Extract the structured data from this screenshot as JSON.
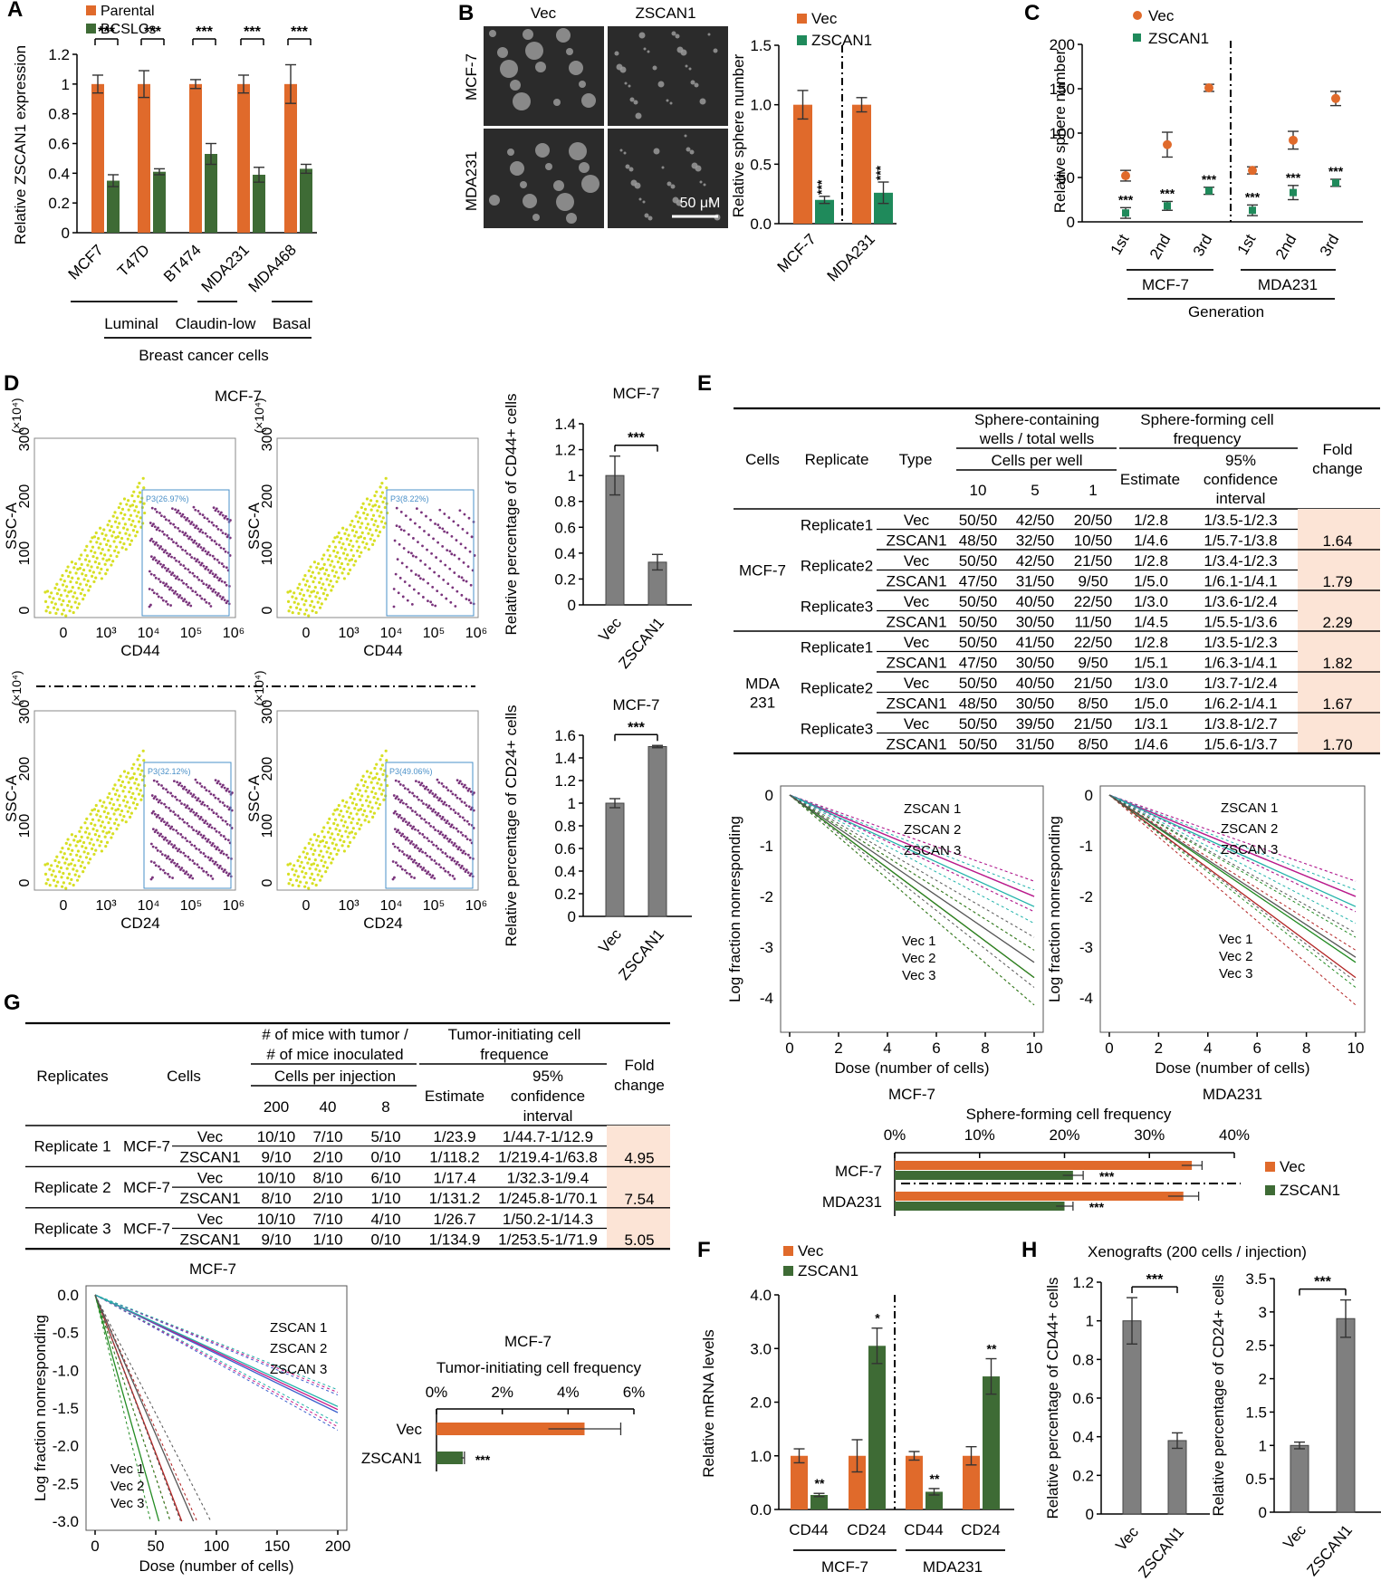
{
  "colors": {
    "orange": "#E06A2B",
    "green": "#3E6B35",
    "teal": "#1F8A5B",
    "gray": "#7F7F7F",
    "peach": "#FCE4D6",
    "yellow": "#D7DF23",
    "purple": "#6B1E6E",
    "gate": "#4A90C8"
  },
  "panel_letters": [
    "A",
    "B",
    "C",
    "D",
    "E",
    "F",
    "G",
    "H"
  ],
  "chart_data": [
    {
      "panel": "A",
      "type": "bar",
      "series": [
        {
          "name": "Parental",
          "values": [
            1,
            1,
            1,
            1,
            1
          ],
          "errors": [
            0.06,
            0.09,
            0.03,
            0.06,
            0.13
          ]
        },
        {
          "name": "BCSLCs",
          "values": [
            0.35,
            0.41,
            0.53,
            0.39,
            0.43
          ],
          "errors": [
            0.04,
            0.02,
            0.07,
            0.05,
            0.03
          ]
        }
      ],
      "categories": [
        "MCF7",
        "T47D",
        "BT474",
        "MDA231",
        "MDA468"
      ],
      "ylabel": "Relative ZSCAN1 expression",
      "ylim": [
        0,
        1.2
      ],
      "yticks": [
        "0",
        "0.2",
        "0.4",
        "0.6",
        "0.8",
        "1",
        "1.2"
      ],
      "significance": [
        "***",
        "***",
        "***",
        "***",
        "***"
      ],
      "groups": [
        "Luminal",
        "Claudin-low",
        "Basal"
      ],
      "xlabel": "Breast cancer cells"
    },
    {
      "panel": "B",
      "type": "bar",
      "image_labels": {
        "columns": [
          "Vec",
          "ZSCAN1"
        ],
        "rows": [
          "MCF-7",
          "MDA231"
        ],
        "scale": "50 μM"
      },
      "series": [
        {
          "name": "Vec",
          "values": [
            1.0,
            1.0
          ],
          "errors": [
            0.12,
            0.06
          ]
        },
        {
          "name": "ZSCAN1",
          "values": [
            0.2,
            0.26
          ],
          "errors": [
            0.03,
            0.09
          ]
        }
      ],
      "categories": [
        "MCF-7",
        "MDA231"
      ],
      "ylabel": "Relative sphere number",
      "ylim": [
        0,
        1.5
      ],
      "yticks": [
        "0.0",
        "0.5",
        "1.0",
        "1.5"
      ],
      "significance": [
        "***",
        "***"
      ]
    },
    {
      "panel": "C",
      "type": "scatter",
      "series": [
        {
          "name": "Vec",
          "values": [
            52,
            87,
            151,
            58,
            92,
            139
          ],
          "errors": [
            6,
            14,
            4,
            4,
            10,
            8
          ]
        },
        {
          "name": "ZSCAN1",
          "values": [
            10,
            18,
            35,
            13,
            33,
            44
          ],
          "errors": [
            6,
            5,
            4,
            6,
            8,
            4
          ]
        }
      ],
      "categories": [
        "1st",
        "2nd",
        "3rd",
        "1st",
        "2nd",
        "3rd"
      ],
      "groups": [
        "MCF-7",
        "MDA231"
      ],
      "xlabel": "Generation",
      "ylabel": "Relative sphere number",
      "ylim": [
        0,
        200
      ],
      "yticks": [
        "0",
        "50",
        "100",
        "150",
        "200"
      ],
      "significance": [
        "***",
        "***",
        "***",
        "***",
        "***",
        "***"
      ]
    },
    {
      "panel": "D",
      "type": "scatter",
      "title": "MCF-7",
      "plots": [
        {
          "gate": "P3(26.97%)",
          "xlabel": "CD44"
        },
        {
          "gate": "P3(8.22%)",
          "xlabel": "CD44"
        },
        {
          "gate": "P3(32.12%)",
          "xlabel": "CD24"
        },
        {
          "gate": "P3(49.06%)",
          "xlabel": "CD24"
        }
      ],
      "ylabel": "SSC-A",
      "yunit": "(×10⁴)",
      "yticks": [
        "0",
        "100",
        "200",
        "300"
      ],
      "xticks": [
        "0",
        "10³",
        "10⁴",
        "10⁵",
        "10⁶"
      ]
    },
    {
      "panel": "D",
      "type": "bar",
      "title": "MCF-7",
      "categories": [
        "Vec",
        "ZSCAN1"
      ],
      "values": [
        1.0,
        0.33
      ],
      "errors": [
        0.15,
        0.06
      ],
      "ylabel": "Relative percentage of CD44+ cells",
      "ylim": [
        0,
        1.4
      ],
      "yticks": [
        "0",
        "0.2",
        "0.4",
        "0.6",
        "0.8",
        "1",
        "1.2",
        "1.4"
      ],
      "significance": "***"
    },
    {
      "panel": "D",
      "type": "bar",
      "title": "MCF-7",
      "categories": [
        "Vec",
        "ZSCAN1"
      ],
      "values": [
        1.0,
        1.5
      ],
      "errors": [
        0.04,
        0.01
      ],
      "ylabel": "Relative percentage of CD24+ cells",
      "ylim": [
        0,
        1.6
      ],
      "yticks": [
        "0",
        "0.2",
        "0.4",
        "0.6",
        "0.8",
        "1",
        "1.2",
        "1.4",
        "1.6"
      ],
      "significance": "***"
    },
    {
      "panel": "E",
      "type": "table",
      "headers": {
        "cells": "Cells",
        "replicate": "Replicate",
        "type": "Type",
        "sphere_wells": "Sphere-containing wells / total wells",
        "cells_per_well": "Cells per well",
        "dose": [
          "10",
          "5",
          "1"
        ],
        "freq": "Sphere-forming cell frequency",
        "estimate": "Estimate",
        "ci": "95% confidence interval",
        "fold": "Fold change"
      },
      "groups": [
        {
          "cells": "MCF-7",
          "replicates": [
            {
              "name": "Replicate1",
              "rows": [
                [
                  "Vec",
                  "50/50",
                  "42/50",
                  "20/50",
                  "1/2.8",
                  "1/3.5-1/2.3"
                ],
                [
                  "ZSCAN1",
                  "48/50",
                  "32/50",
                  "10/50",
                  "1/4.6",
                  "1/5.7-1/3.8"
                ]
              ],
              "fold": "1.64"
            },
            {
              "name": "Replicate2",
              "rows": [
                [
                  "Vec",
                  "50/50",
                  "42/50",
                  "21/50",
                  "1/2.8",
                  "1/3.4-1/2.3"
                ],
                [
                  "ZSCAN1",
                  "47/50",
                  "31/50",
                  "9/50",
                  "1/5.0",
                  "1/6.1-1/4.1"
                ]
              ],
              "fold": "1.79"
            },
            {
              "name": "Replicate3",
              "rows": [
                [
                  "Vec",
                  "50/50",
                  "40/50",
                  "22/50",
                  "1/3.0",
                  "1/3.6-1/2.4"
                ],
                [
                  "ZSCAN1",
                  "50/50",
                  "30/50",
                  "11/50",
                  "1/4.5",
                  "1/5.5-1/3.6"
                ]
              ],
              "fold": "2.29"
            }
          ]
        },
        {
          "cells": "MDA 231",
          "replicates": [
            {
              "name": "Replicate1",
              "rows": [
                [
                  "Vec",
                  "50/50",
                  "41/50",
                  "22/50",
                  "1/2.8",
                  "1/3.5-1/2.3"
                ],
                [
                  "ZSCAN1",
                  "47/50",
                  "30/50",
                  "9/50",
                  "1/5.1",
                  "1/6.3-1/4.1"
                ]
              ],
              "fold": "1.82"
            },
            {
              "name": "Replicate2",
              "rows": [
                [
                  "Vec",
                  "50/50",
                  "40/50",
                  "21/50",
                  "1/3.0",
                  "1/3.7-1/2.4"
                ],
                [
                  "ZSCAN1",
                  "48/50",
                  "30/50",
                  "8/50",
                  "1/5.0",
                  "1/6.2-1/4.1"
                ]
              ],
              "fold": "1.67"
            },
            {
              "name": "Replicate3",
              "rows": [
                [
                  "Vec",
                  "50/50",
                  "39/50",
                  "21/50",
                  "1/3.1",
                  "1/3.8-1/2.7"
                ],
                [
                  "ZSCAN1",
                  "50/50",
                  "31/50",
                  "8/50",
                  "1/4.6",
                  "1/5.6-1/3.7"
                ]
              ],
              "fold": "1.70"
            }
          ]
        }
      ]
    },
    {
      "panel": "E",
      "type": "line",
      "titles": [
        "MCF-7",
        "MDA231"
      ],
      "xlabel": "Dose (number of cells)",
      "ylabel": "Log fraction nonresponding",
      "xlim": [
        0,
        10
      ],
      "ylim": [
        -4.5,
        0
      ],
      "xticks": [
        "0",
        "2",
        "4",
        "6",
        "8",
        "10"
      ],
      "yticks": [
        "0",
        "-1",
        "-2",
        "-3",
        "-4"
      ],
      "series_labels": [
        "ZSCAN 1",
        "ZSCAN 2",
        "ZSCAN 3",
        "Vec 1",
        "Vec 2",
        "Vec 3"
      ],
      "slopes": [
        [
          -0.2,
          -0.2,
          -0.22,
          -0.36,
          -0.36,
          -0.33
        ],
        [
          -0.2,
          -0.2,
          -0.22,
          -0.36,
          -0.33,
          -0.32
        ]
      ]
    },
    {
      "panel": "E",
      "type": "bar",
      "orientation": "horizontal",
      "title": "Sphere-forming cell frequency",
      "categories": [
        "MCF-7",
        "MDA231"
      ],
      "series": [
        {
          "name": "Vec",
          "values": [
            35,
            34
          ],
          "errors": [
            1.2,
            1.8
          ]
        },
        {
          "name": "ZSCAN1",
          "values": [
            21,
            20
          ],
          "errors": [
            1.2,
            1
          ]
        }
      ],
      "xlim": [
        0,
        40
      ],
      "xticks": [
        "0%",
        "10%",
        "20%",
        "30%",
        "40%"
      ],
      "significance": [
        "***",
        "***"
      ]
    },
    {
      "panel": "F",
      "type": "bar",
      "series": [
        {
          "name": "Vec",
          "values": [
            1.0,
            1.0,
            1.0,
            1.0
          ],
          "errors": [
            0.13,
            0.3,
            0.08,
            0.17
          ]
        },
        {
          "name": "ZSCAN1",
          "values": [
            0.27,
            3.05,
            0.33,
            2.48
          ],
          "errors": [
            0.03,
            0.33,
            0.06,
            0.33
          ]
        }
      ],
      "categories": [
        "CD44",
        "CD24",
        "CD44",
        "CD24"
      ],
      "groups": [
        "MCF-7",
        "MDA231"
      ],
      "ylabel": "Relative mRNA levels",
      "ylim": [
        0,
        4
      ],
      "yticks": [
        "0.0",
        "1.0",
        "2.0",
        "3.0",
        "4.0"
      ],
      "significance": [
        "**",
        "*",
        "**",
        "**"
      ]
    },
    {
      "panel": "G",
      "type": "table",
      "headers": {
        "replicates": "Replicates",
        "cells": "Cells",
        "mice": "# of mice with tumor / # of mice inoculated",
        "cells_per_injection": "Cells per injection",
        "dose": [
          "200",
          "40",
          "8"
        ],
        "freq": "Tumor-initiating cell frequence",
        "estimate": "Estimate",
        "ci": "95% confidence interval",
        "fold": "Fold change"
      },
      "replicates": [
        {
          "name": "Replicate 1",
          "cells": "MCF-7",
          "rows": [
            [
              "Vec",
              "10/10",
              "7/10",
              "5/10",
              "1/23.9",
              "1/44.7-1/12.9"
            ],
            [
              "ZSCAN1",
              "9/10",
              "2/10",
              "0/10",
              "1/118.2",
              "1/219.4-1/63.8"
            ]
          ],
          "fold": "4.95"
        },
        {
          "name": "Replicate 2",
          "cells": "MCF-7",
          "rows": [
            [
              "Vec",
              "10/10",
              "8/10",
              "6/10",
              "1/17.4",
              "1/32.3-1/9.4"
            ],
            [
              "ZSCAN1",
              "8/10",
              "2/10",
              "1/10",
              "1/131.2",
              "1/245.8-1/70.1"
            ]
          ],
          "fold": "7.54"
        },
        {
          "name": "Replicate 3",
          "cells": "MCF-7",
          "rows": [
            [
              "Vec",
              "10/10",
              "7/10",
              "4/10",
              "1/26.7",
              "1/50.2-1/14.3"
            ],
            [
              "ZSCAN1",
              "9/10",
              "1/10",
              "0/10",
              "1/134.9",
              "1/253.5-1/71.9"
            ]
          ],
          "fold": "5.05"
        }
      ]
    },
    {
      "panel": "G",
      "type": "line",
      "title": "MCF-7",
      "xlabel": "Dose (number of cells)",
      "ylabel": "Log fraction nonresponding",
      "xlim": [
        0,
        200
      ],
      "ylim": [
        -3.0,
        0
      ],
      "xticks": [
        "0",
        "50",
        "100",
        "150",
        "200"
      ],
      "yticks": [
        "0.0",
        "-0.5",
        "-1.0",
        "-1.5",
        "-2.0",
        "-2.5",
        "-3.0"
      ],
      "series_labels": [
        "ZSCAN 1",
        "ZSCAN 2",
        "ZSCAN 3",
        "Vec 1",
        "Vec 2",
        "Vec 3"
      ],
      "slopes": [
        -0.0078,
        -0.0076,
        -0.0074,
        -0.042,
        -0.057,
        -0.037
      ]
    },
    {
      "panel": "G",
      "type": "bar",
      "orientation": "horizontal",
      "title": "MCF-7",
      "subtitle": "Tumor-initiating cell frequency",
      "categories": [
        "Vec",
        "ZSCAN1"
      ],
      "values": [
        4.5,
        0.8
      ],
      "errors": [
        1.1,
        0.05
      ],
      "xlim": [
        0,
        6
      ],
      "xticks": [
        "0%",
        "2%",
        "4%",
        "6%"
      ],
      "significance": "***"
    },
    {
      "panel": "H",
      "type": "bar",
      "title": "Xenografts (200 cells / injection)",
      "plots": [
        {
          "categories": [
            "Vec",
            "ZSCAN1"
          ],
          "values": [
            1.0,
            0.38
          ],
          "errors": [
            0.12,
            0.04
          ],
          "ylabel": "Relative percentage of CD44+ cells",
          "ylim": [
            0,
            1.2
          ],
          "yticks": [
            "0",
            "0.2",
            "0.4",
            "0.6",
            "0.8",
            "1",
            "1.2"
          ],
          "significance": "***"
        },
        {
          "categories": [
            "Vec",
            "ZSCAN1"
          ],
          "values": [
            1.0,
            2.9
          ],
          "errors": [
            0.05,
            0.28
          ],
          "ylabel": "Relative percentage of CD24+ cells",
          "ylim": [
            0,
            3.5
          ],
          "yticks": [
            "0",
            "0.5",
            "1",
            "1.5",
            "2",
            "2.5",
            "3",
            "3.5"
          ],
          "significance": "***"
        }
      ]
    }
  ]
}
